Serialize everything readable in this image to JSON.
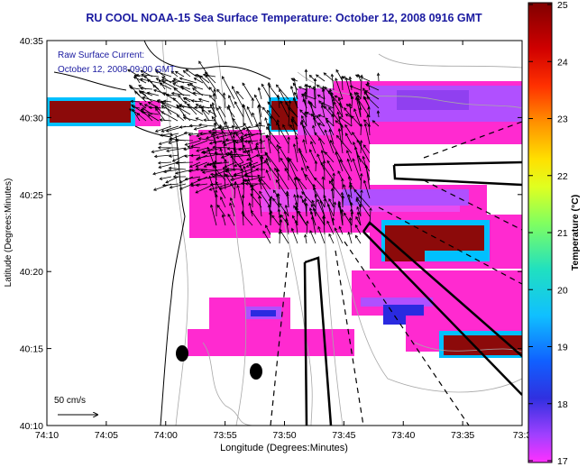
{
  "chart_data": {
    "type": "heatmap",
    "title": "RU COOL  NOAA-15  Sea Surface Temperature:  October 12, 2008 0916 GMT",
    "annotation": {
      "line1": "Raw Surface Current:",
      "line2": "October 12, 2008 09:00 GMT"
    },
    "scale_label": "50 cm/s",
    "xlabel": "Longitude (Degrees:Minutes)",
    "ylabel": "Latitude (Degrees:Minutes)",
    "x_ticks": [
      "74:10",
      "74:05",
      "74:00",
      "73:55",
      "73:50",
      "73:45",
      "73:40",
      "73:35",
      "73:3"
    ],
    "y_ticks": [
      "40:35",
      "40:30",
      "40:25",
      "40:20",
      "40:15",
      "40:10"
    ],
    "colorbar": {
      "label": "Temperature (°C)",
      "ticks": [
        "25",
        "24",
        "23",
        "22",
        "21",
        "20",
        "19",
        "18",
        "17"
      ],
      "range": [
        17,
        25
      ]
    },
    "colors": {
      "title": "#1a1aa0",
      "annotation": "#1a1aa0",
      "warm": "#8c0a0a",
      "pink": "#ff2ad0",
      "magenta": "#e84cf0",
      "violet": "#b050ff",
      "cold": "#2a2ae0"
    }
  }
}
